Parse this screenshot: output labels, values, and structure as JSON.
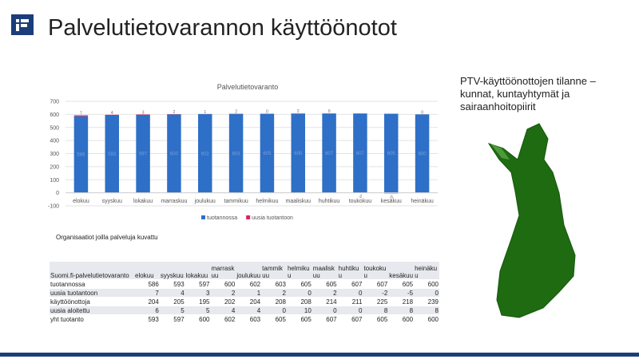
{
  "header": {
    "title": "Palvelutietovarannon käyttöönotot"
  },
  "chart_data": {
    "type": "bar",
    "stacked": true,
    "title": "Palvelutietovaranto",
    "categories": [
      "elokuu",
      "syyskuu",
      "lokakuu",
      "marraskuu",
      "joulukuu",
      "tammikuu",
      "helmikuu",
      "maaliskuu",
      "huhtikuu",
      "toukokuu",
      "kesäkuu",
      "heinäkuu"
    ],
    "series": [
      {
        "name": "tuotannossa",
        "color": "#2e6fc7",
        "values": [
          586,
          593,
          597,
          600,
          602,
          603,
          605,
          605,
          607,
          607,
          605,
          600
        ]
      },
      {
        "name": "uusia tuotantoon",
        "color": "#e0245e",
        "values": [
          7,
          4,
          3,
          2,
          1,
          2,
          0,
          2,
          0,
          -2,
          -5,
          0
        ]
      }
    ],
    "ylim": [
      -100,
      700
    ],
    "yticks": [
      -100,
      0,
      100,
      200,
      300,
      400,
      500,
      600,
      700
    ],
    "grid": true,
    "legend": "bottom"
  },
  "table": {
    "caption": "Organisaatiot joilla palveluja kuvattu",
    "header": [
      "Suomi.fi-palvelutietovaranto",
      "elokuu",
      "syyskuu",
      "lokakuu",
      "marraskuu",
      "joulukuu",
      "tammikuu",
      "helmikuu",
      "maaliskuu",
      "huhtikuu",
      "toukokuu",
      "kesäkuu",
      "heinäkuu"
    ],
    "rows": [
      [
        "tuotannossa",
        "586",
        "593",
        "597",
        "600",
        "602",
        "603",
        "605",
        "605",
        "607",
        "607",
        "605",
        "600"
      ],
      [
        "uusia tuotantoon",
        "7",
        "4",
        "3",
        "2",
        "1",
        "2",
        "0",
        "2",
        "0",
        "-2",
        "-5",
        "0"
      ],
      [
        "käyttöönottoja",
        "204",
        "205",
        "195",
        "202",
        "204",
        "208",
        "208",
        "214",
        "211",
        "225",
        "218",
        "239"
      ],
      [
        "uusia aloitettu",
        "6",
        "5",
        "5",
        "4",
        "4",
        "0",
        "10",
        "0",
        "0",
        "8",
        "8",
        "8"
      ],
      [
        "yht tuotanto",
        "593",
        "597",
        "600",
        "602",
        "603",
        "605",
        "605",
        "607",
        "607",
        "605",
        "600",
        "600"
      ]
    ]
  },
  "side": {
    "text": "PTV-käyttöönottojen tilanne – kunnat, kuntayhtymät ja sairaanhoitopiirit"
  }
}
